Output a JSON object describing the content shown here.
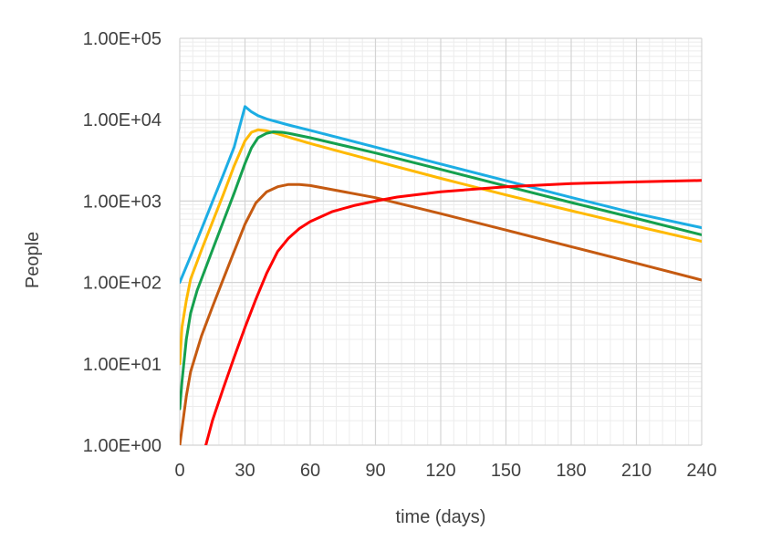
{
  "chart_data": {
    "type": "line",
    "title": "",
    "xlabel": "time (days)",
    "ylabel": "People",
    "x_scale": "linear",
    "y_scale": "log",
    "xlim": [
      0,
      240
    ],
    "ylim": [
      1,
      100000
    ],
    "x_ticks": [
      0,
      30,
      60,
      90,
      120,
      150,
      180,
      210,
      240
    ],
    "x_tick_labels": [
      "0",
      "30",
      "60",
      "90",
      "120",
      "150",
      "180",
      "210",
      "240"
    ],
    "y_ticks": [
      1,
      10,
      100,
      1000,
      10000,
      100000
    ],
    "y_tick_labels": [
      "1.00E+00",
      "1.00E+01",
      "1.00E+02",
      "1.00E+03",
      "1.00E+04",
      "1.00E+05"
    ],
    "grid": true,
    "legend": "none",
    "series": [
      {
        "name": "blue",
        "color": "#1CADE4",
        "points": [
          [
            0,
            100
          ],
          [
            5,
            210
          ],
          [
            10,
            450
          ],
          [
            15,
            980
          ],
          [
            20,
            2100
          ],
          [
            25,
            4600
          ],
          [
            30,
            14500
          ],
          [
            33,
            12500
          ],
          [
            36,
            11200
          ],
          [
            40,
            10200
          ],
          [
            50,
            8600
          ],
          [
            60,
            7400
          ],
          [
            90,
            4600
          ],
          [
            120,
            2850
          ],
          [
            150,
            1780
          ],
          [
            180,
            1110
          ],
          [
            210,
            700
          ],
          [
            240,
            470
          ]
        ]
      },
      {
        "name": "yellow",
        "color": "#FFB900",
        "points": [
          [
            0,
            10
          ],
          [
            1,
            28
          ],
          [
            3,
            60
          ],
          [
            5,
            110
          ],
          [
            10,
            250
          ],
          [
            15,
            550
          ],
          [
            20,
            1200
          ],
          [
            25,
            2700
          ],
          [
            30,
            5500
          ],
          [
            33,
            7000
          ],
          [
            36,
            7500
          ],
          [
            40,
            7300
          ],
          [
            45,
            6700
          ],
          [
            50,
            6100
          ],
          [
            60,
            5100
          ],
          [
            90,
            3100
          ],
          [
            120,
            1900
          ],
          [
            150,
            1190
          ],
          [
            180,
            760
          ],
          [
            210,
            490
          ],
          [
            240,
            320
          ]
        ]
      },
      {
        "name": "green",
        "color": "#15A04E",
        "points": [
          [
            0,
            2.8
          ],
          [
            1,
            6
          ],
          [
            3,
            20
          ],
          [
            5,
            42
          ],
          [
            8,
            80
          ],
          [
            10,
            110
          ],
          [
            15,
            250
          ],
          [
            20,
            560
          ],
          [
            25,
            1250
          ],
          [
            30,
            2900
          ],
          [
            33,
            4500
          ],
          [
            36,
            6000
          ],
          [
            40,
            6800
          ],
          [
            43,
            7100
          ],
          [
            47,
            7000
          ],
          [
            50,
            6800
          ],
          [
            60,
            6000
          ],
          [
            90,
            3900
          ],
          [
            120,
            2450
          ],
          [
            150,
            1530
          ],
          [
            180,
            960
          ],
          [
            210,
            610
          ],
          [
            240,
            385
          ]
        ]
      },
      {
        "name": "brown",
        "color": "#C55A11",
        "points": [
          [
            0,
            1
          ],
          [
            3,
            4
          ],
          [
            5,
            8
          ],
          [
            10,
            22
          ],
          [
            15,
            50
          ],
          [
            20,
            110
          ],
          [
            25,
            240
          ],
          [
            30,
            520
          ],
          [
            35,
            950
          ],
          [
            40,
            1300
          ],
          [
            45,
            1500
          ],
          [
            50,
            1600
          ],
          [
            55,
            1600
          ],
          [
            60,
            1550
          ],
          [
            90,
            1100
          ],
          [
            120,
            700
          ],
          [
            150,
            440
          ],
          [
            180,
            275
          ],
          [
            210,
            172
          ],
          [
            240,
            107
          ]
        ]
      },
      {
        "name": "red",
        "color": "#FF0000",
        "points": [
          [
            12,
            1
          ],
          [
            15,
            2
          ],
          [
            20,
            5
          ],
          [
            25,
            12
          ],
          [
            30,
            28
          ],
          [
            35,
            62
          ],
          [
            40,
            130
          ],
          [
            45,
            240
          ],
          [
            50,
            350
          ],
          [
            55,
            460
          ],
          [
            60,
            560
          ],
          [
            70,
            740
          ],
          [
            80,
            880
          ],
          [
            90,
            1000
          ],
          [
            100,
            1120
          ],
          [
            120,
            1300
          ],
          [
            150,
            1500
          ],
          [
            180,
            1640
          ],
          [
            210,
            1720
          ],
          [
            240,
            1790
          ]
        ]
      }
    ]
  }
}
